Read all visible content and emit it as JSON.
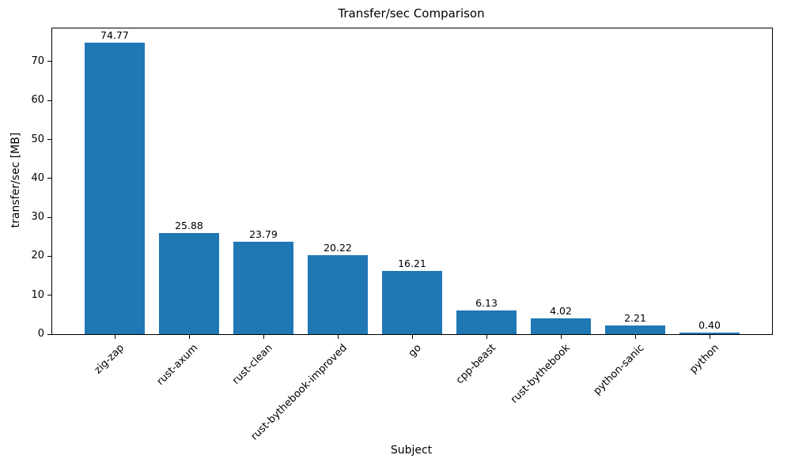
{
  "chart_data": {
    "type": "bar",
    "title": "Transfer/sec Comparison",
    "xlabel": "Subject",
    "ylabel": "transfer/sec [MB]",
    "categories": [
      "zig-zap",
      "rust-axum",
      "rust-clean",
      "rust-bythebook-improved",
      "go",
      "cpp-beast",
      "rust-bythebook",
      "python-sanic",
      "python"
    ],
    "values": [
      74.77,
      25.88,
      23.79,
      20.22,
      16.21,
      6.13,
      4.02,
      2.21,
      0.4
    ],
    "value_labels": [
      "74.77",
      "25.88",
      "23.79",
      "20.22",
      "16.21",
      "6.13",
      "4.02",
      "2.21",
      "0.40"
    ],
    "yticks": [
      0,
      10,
      20,
      30,
      40,
      50,
      60,
      70
    ],
    "ytick_labels": [
      "0",
      "10",
      "20",
      "30",
      "40",
      "50",
      "60",
      "70"
    ],
    "ylim": [
      0,
      78.5
    ],
    "bar_color": "#1f77b4",
    "grid": false,
    "legend": false
  }
}
